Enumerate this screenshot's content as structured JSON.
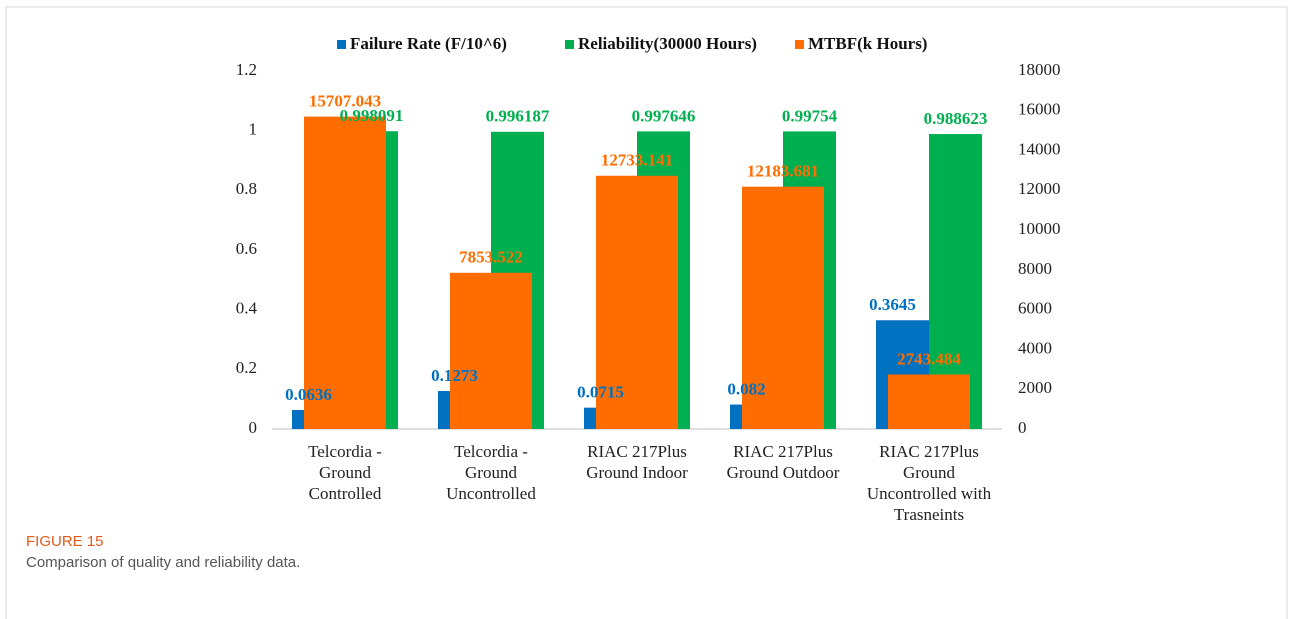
{
  "chart_data": {
    "type": "bar",
    "categories": [
      "Telcordia -\nGround\nControlled",
      "Telcordia -\nGround\nUncontrolled",
      "RIAC 217Plus\nGround Indoor",
      "RIAC 217Plus\nGround Outdoor",
      "RIAC 217Plus\nGround\nUncontrolled with\nTrasneints"
    ],
    "series": [
      {
        "name": "Failure Rate (F/10^6)",
        "color": "#0070c0",
        "values": [
          0.0636,
          0.1273,
          0.0715,
          0.082,
          0.3645
        ]
      },
      {
        "name": "Reliability(30000 Hours)",
        "color": "#00b050",
        "values": [
          0.998091,
          0.996187,
          0.997646,
          0.99754,
          0.988623
        ]
      },
      {
        "name": "MTBF(k Hours)",
        "color": "#ff6d00",
        "axis": "y2",
        "values": [
          15707.043,
          7853.522,
          12733.141,
          12183.681,
          2743.484
        ]
      }
    ],
    "ylim": [
      0,
      1.2
    ],
    "yticks": [
      0,
      0.2,
      0.4,
      0.6,
      0.8,
      1,
      1.2
    ],
    "y2lim": [
      0,
      18000
    ],
    "y2ticks": [
      0,
      2000,
      4000,
      6000,
      8000,
      10000,
      12000,
      14000,
      16000,
      18000
    ],
    "legend": "top"
  },
  "figure": {
    "label": "FIGURE 15",
    "caption": "Comparison of quality and reliability data."
  }
}
